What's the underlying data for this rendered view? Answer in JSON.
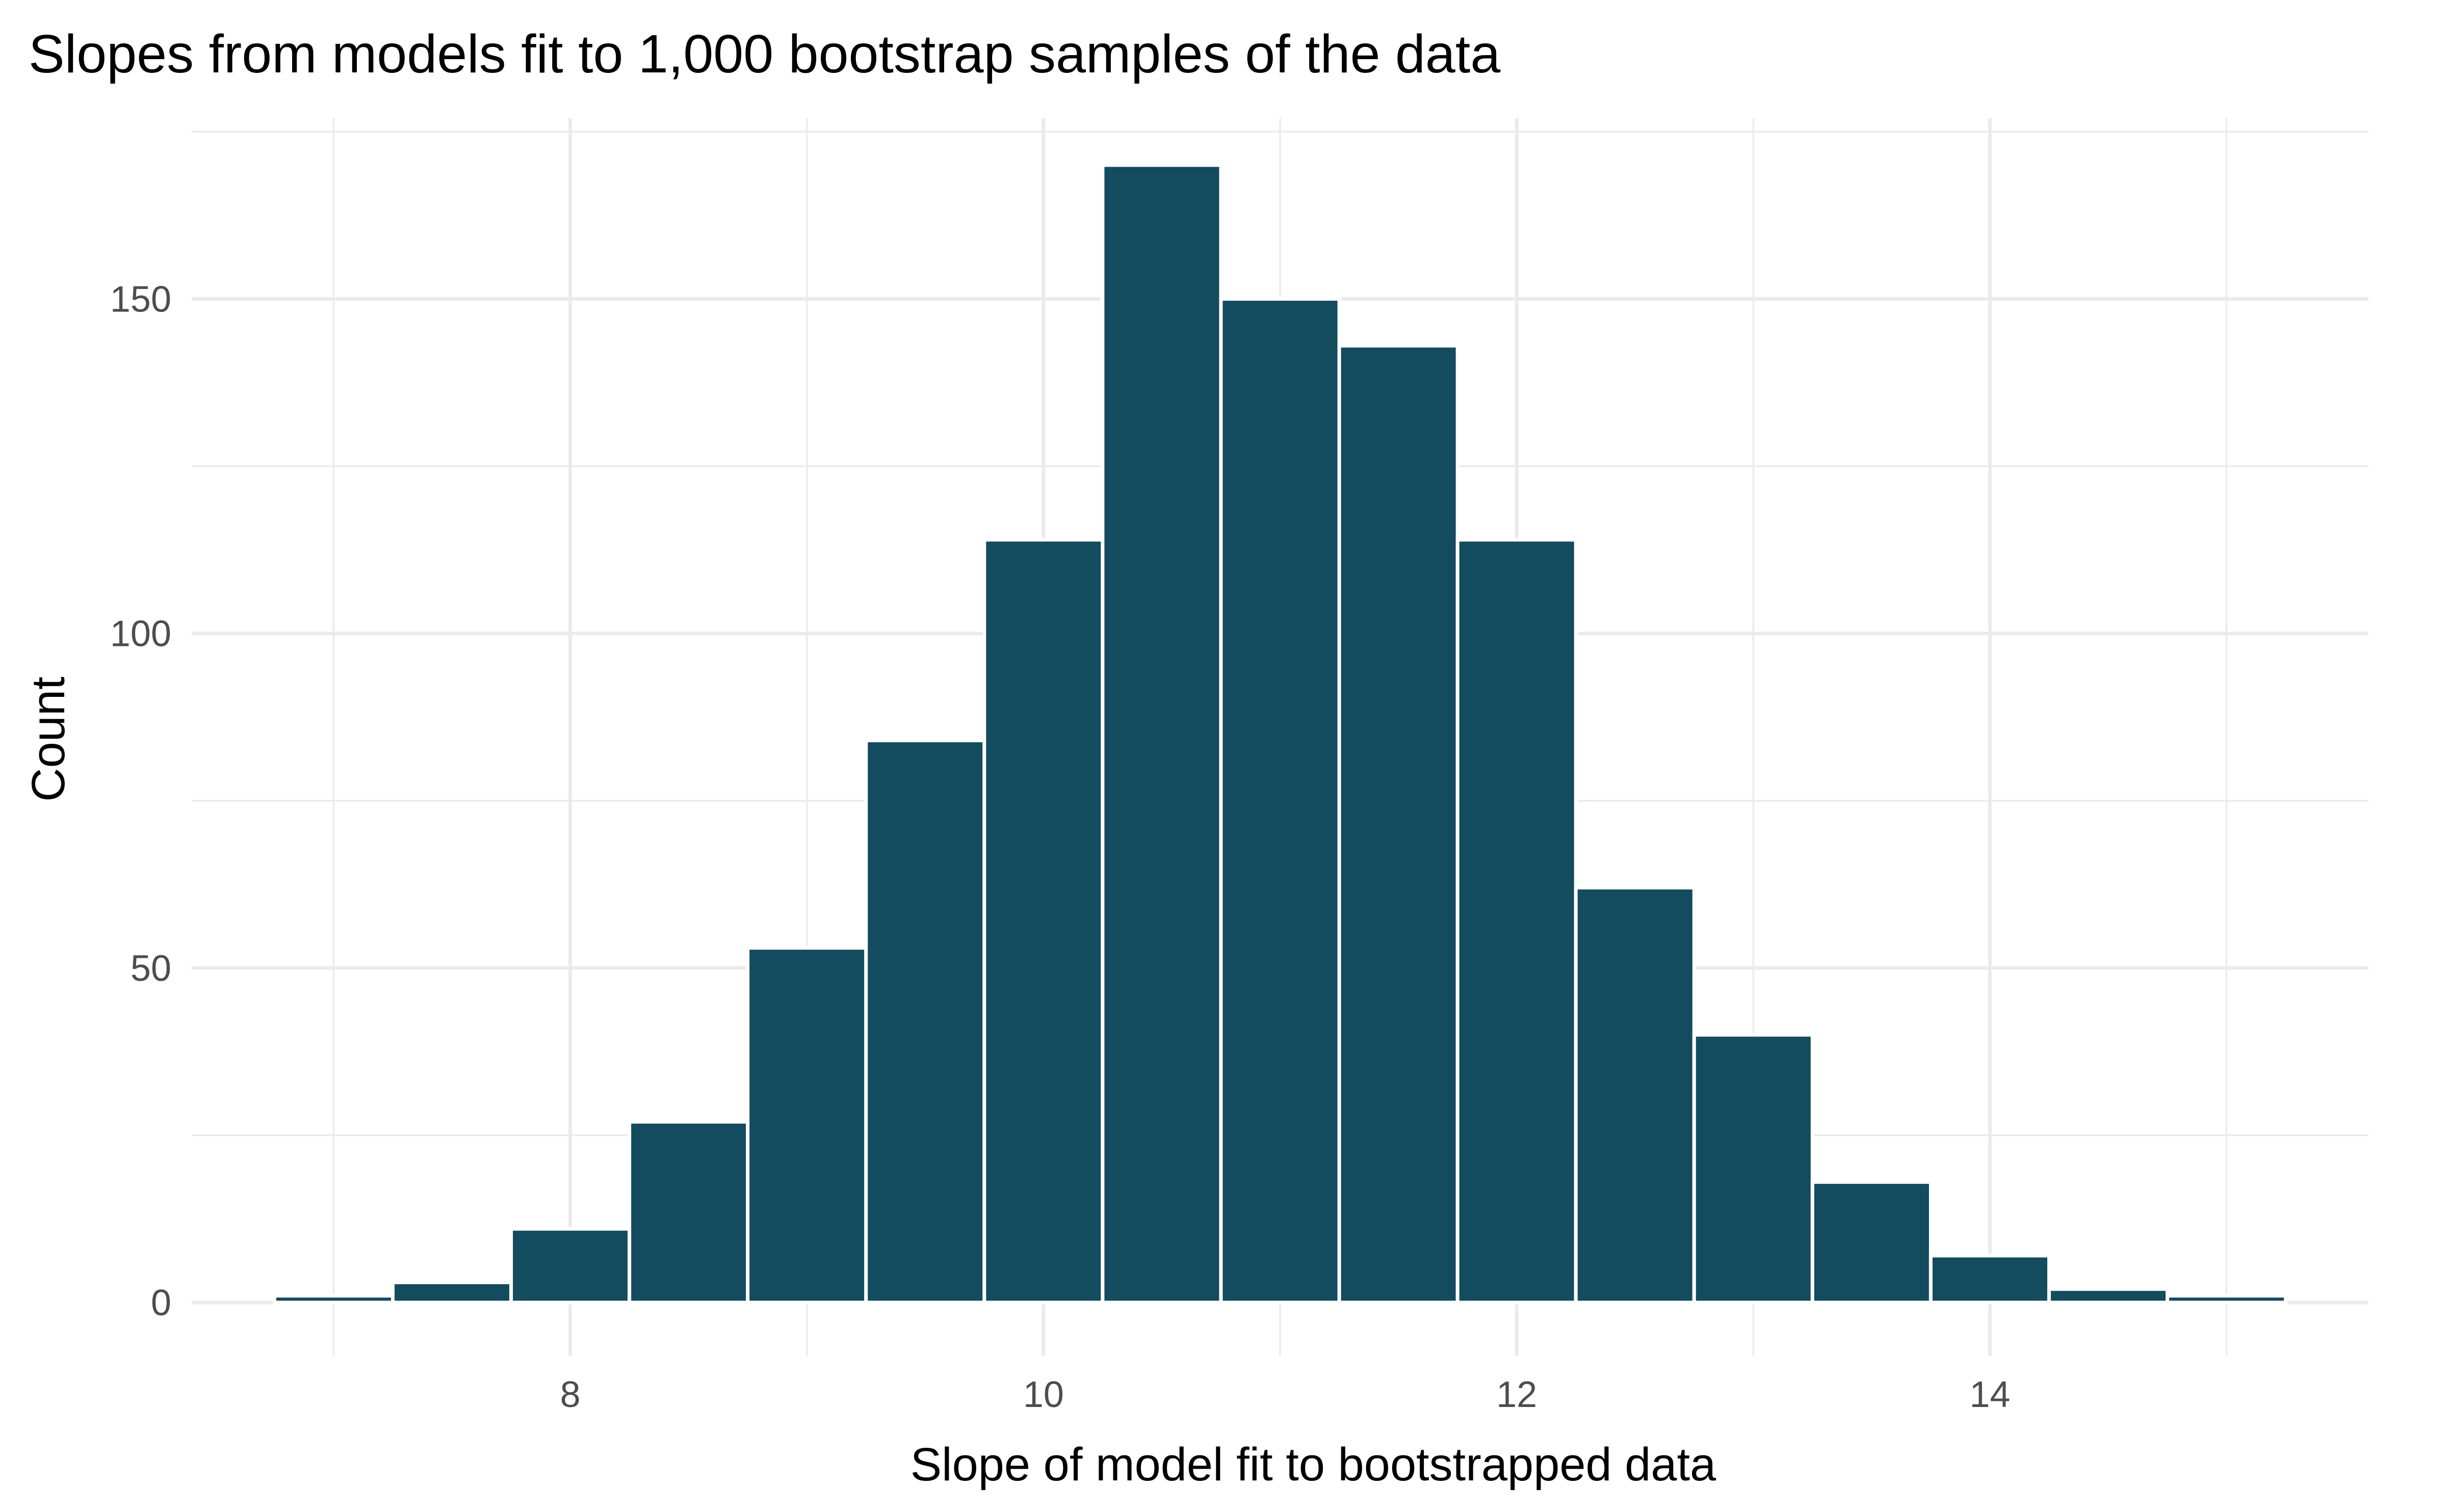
{
  "chart_data": {
    "type": "bar",
    "title": "Slopes from models fit to 1,000 bootstrap samples of the data",
    "xlabel": "Slope of model fit to bootstrapped data",
    "ylabel": "Count",
    "bin_width": 0.5,
    "bins": [
      {
        "x_min": 6.75,
        "x_max": 7.25,
        "count": 1
      },
      {
        "x_min": 7.25,
        "x_max": 7.75,
        "count": 3
      },
      {
        "x_min": 7.75,
        "x_max": 8.25,
        "count": 11
      },
      {
        "x_min": 8.25,
        "x_max": 8.75,
        "count": 27
      },
      {
        "x_min": 8.75,
        "x_max": 9.25,
        "count": 53
      },
      {
        "x_min": 9.25,
        "x_max": 9.75,
        "count": 84
      },
      {
        "x_min": 9.75,
        "x_max": 10.25,
        "count": 114
      },
      {
        "x_min": 10.25,
        "x_max": 10.75,
        "count": 170
      },
      {
        "x_min": 10.75,
        "x_max": 11.25,
        "count": 150
      },
      {
        "x_min": 11.25,
        "x_max": 11.75,
        "count": 143
      },
      {
        "x_min": 11.75,
        "x_max": 12.25,
        "count": 114
      },
      {
        "x_min": 12.25,
        "x_max": 12.75,
        "count": 62
      },
      {
        "x_min": 12.75,
        "x_max": 13.25,
        "count": 40
      },
      {
        "x_min": 13.25,
        "x_max": 13.75,
        "count": 18
      },
      {
        "x_min": 13.75,
        "x_max": 14.25,
        "count": 7
      },
      {
        "x_min": 14.25,
        "x_max": 14.75,
        "count": 2
      },
      {
        "x_min": 14.75,
        "x_max": 15.25,
        "count": 1
      }
    ],
    "xlim": [
      6.4,
      15.6
    ],
    "ylim": [
      -8,
      177
    ],
    "x_ticks": [
      8,
      10,
      12,
      14
    ],
    "x_tick_labels": [
      "8",
      "10",
      "12",
      "14"
    ],
    "x_minor_ticks": [
      7,
      9,
      11,
      13,
      15
    ],
    "y_ticks": [
      0,
      50,
      100,
      150
    ],
    "y_tick_labels": [
      "0",
      "50",
      "100",
      "150"
    ],
    "y_minor_ticks": [
      25,
      75,
      125,
      175
    ],
    "grid": true,
    "bar_color": "#134b5f",
    "bar_outline_color": "#ffffff",
    "background_color": "#ffffff",
    "grid_color": "#ebebeb"
  }
}
